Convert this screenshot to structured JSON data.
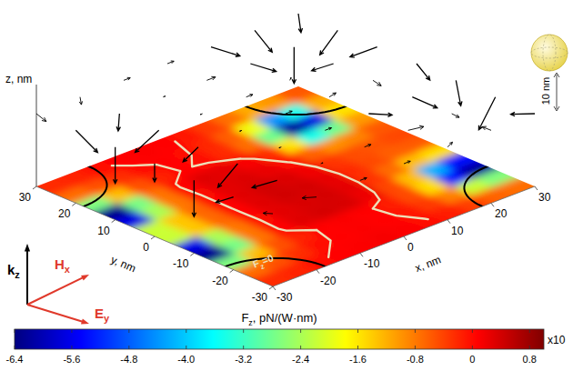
{
  "chart_data": {
    "type": "heatmap",
    "xlabel": "x, nm",
    "ylabel": "y, nm",
    "zlabel": "z, nm",
    "xlim": [
      -30,
      30
    ],
    "ylim": [
      -30,
      30
    ],
    "zlim": [
      0,
      28
    ],
    "xticks": [
      -30,
      -20,
      -10,
      0,
      10,
      20,
      30
    ],
    "yticks": [
      -30,
      -20,
      -10,
      0,
      10,
      20,
      30
    ],
    "cells": [
      [
        -0.23,
        -0.16,
        -0.05,
        0.05,
        0.1,
        0.13,
        0.1,
        0.01,
        -0.15,
        -0.38,
        -0.65,
        -0.72
      ],
      [
        -0.72,
        -0.51,
        -0.25,
        -0.05,
        0.05,
        0.1,
        0.07,
        -0.07,
        -0.35,
        -0.87,
        -2.17,
        -2.67
      ],
      [
        -2.7,
        -1.31,
        -0.51,
        -0.16,
        0.05,
        0.1,
        0.06,
        -0.12,
        -0.47,
        -1.54,
        -5.39,
        -6.2
      ],
      [
        -6.3,
        -2.75,
        -0.77,
        0.07,
        0.3,
        0.37,
        0.36,
        0.19,
        -0.44,
        -1.31,
        -4.18,
        -5.39
      ],
      [
        -5.66,
        -2.39,
        -0.79,
        0.02,
        0.28,
        0.35,
        0.38,
        0.26,
        -0.27,
        -0.71,
        -1.31,
        -1.54
      ],
      [
        -2.16,
        -1.36,
        -0.68,
        0.03,
        0.29,
        0.4,
        0.38,
        0.25,
        -0.24,
        -0.45,
        -0.61,
        -0.59
      ],
      [
        -2.16,
        -1.36,
        -0.68,
        0.03,
        0.29,
        0.4,
        0.33,
        0.17,
        -0.32,
        -0.49,
        -0.53,
        -0.44
      ],
      [
        -5.66,
        -2.39,
        -0.79,
        0.02,
        0.28,
        0.32,
        0.23,
        -0.02,
        -0.65,
        -0.97,
        -0.89,
        -0.56
      ],
      [
        -6.3,
        -2.75,
        -0.77,
        0.07,
        0.3,
        0.27,
        0.12,
        -0.26,
        -1.58,
        -3.48,
        -2.82,
        -1.05
      ],
      [
        -2.7,
        -1.31,
        -0.51,
        -0.16,
        0.03,
        -0.05,
        -0.24,
        -0.73,
        -2.82,
        -6.2,
        -5.69,
        -1.58
      ],
      [
        -0.72,
        -0.51,
        -0.25,
        -0.05,
        0.03,
        0.02,
        -0.2,
        -0.61,
        -1.87,
        -4.39,
        -3.48,
        -1.17
      ],
      [
        -0.23,
        -0.16,
        -0.05,
        0.05,
        0.1,
        0.06,
        -0.09,
        -0.35,
        -0.73,
        -1.17,
        -1.02,
        -0.56
      ]
    ],
    "colorbar": {
      "title": {
        "text": "F",
        "sub": "z",
        "rest": ", pN/(W·nm)"
      },
      "range": [
        -6.4,
        1.0
      ],
      "ticks": [
        -6.4,
        -5.6,
        -4.8,
        {
          "value": -4,
          "label": "-4.0"
        },
        -3.2,
        -2.4,
        -1.6,
        -0.8,
        0,
        0.8
      ],
      "multiplier": "x10"
    },
    "contour": {
      "level": 0,
      "color": "#eedfb8",
      "label": {
        "text": "F",
        "sub": "z",
        "rest": "=0"
      }
    },
    "particles": {
      "centers": [
        [
          -30,
          -30
        ],
        [
          30,
          -30
        ],
        [
          -30,
          30
        ],
        [
          30,
          30
        ]
      ],
      "radius": 12
    },
    "arrows": {
      "z": 20,
      "x": [
        -30,
        -20,
        -10,
        0,
        10,
        20,
        30
      ],
      "y": [
        -30,
        -20,
        -10,
        0,
        10,
        20,
        30
      ],
      "uvw": [
        [
          [
            0,
            0.5,
            -0.2
          ],
          [
            -0.3,
            0.4,
            -0.1
          ],
          [
            0.3,
            0,
            0
          ],
          [
            0.3,
            0,
            0
          ],
          [
            0.5,
            0.3,
            -0.1
          ],
          [
            0.4,
            0.9,
            -0.4
          ],
          [
            -0.2,
            1.0,
            -0.4
          ]
        ],
        [
          [
            0.1,
            1.0,
            -0.8
          ],
          [
            -0.6,
            0.6,
            -0.4
          ],
          [
            0.1,
            0,
            0
          ],
          [
            0.3,
            0,
            0
          ],
          [
            0.9,
            0.2,
            -0.3
          ],
          [
            0.8,
            0.5,
            -0.8
          ],
          [
            -0.4,
            0.4,
            -1.8
          ]
        ],
        [
          [
            0,
            0,
            -2
          ],
          [
            -1.0,
            -0.1,
            -0.8
          ],
          [
            -0.1,
            0,
            0
          ],
          [
            0.3,
            0,
            0
          ],
          [
            0.8,
            -0.3,
            -0.3
          ],
          [
            0.6,
            -0.6,
            -0.6
          ],
          [
            -0.5,
            -0.8,
            -0.8
          ]
        ],
        [
          [
            0,
            0,
            -1.0
          ],
          [
            -0.7,
            0,
            -0.5
          ],
          [
            -0.1,
            0,
            0
          ],
          [
            0.3,
            0,
            0
          ],
          [
            0.4,
            0.1,
            0
          ],
          [
            0.2,
            -0.2,
            -0.3
          ],
          [
            -0.2,
            -0.9,
            -0.4
          ]
        ],
        [
          [
            0,
            0,
            -2
          ],
          [
            -1.0,
            0.1,
            -0.8
          ],
          [
            -0.1,
            0,
            0
          ],
          [
            0.3,
            0,
            0
          ],
          [
            0.6,
            0.6,
            -0.4
          ],
          [
            -0.1,
            1.0,
            -0.8
          ],
          [
            -0.7,
            0.6,
            -0.5
          ]
        ],
        [
          [
            0.1,
            -1.0,
            -0.8
          ],
          [
            -0.6,
            -0.6,
            -0.4
          ],
          [
            0.1,
            0,
            0
          ],
          [
            0.4,
            0,
            0
          ],
          [
            1.0,
            -0.2,
            -0.8
          ],
          [
            0,
            0,
            -2
          ],
          [
            -1.0,
            -0.2,
            -0.8
          ]
        ],
        [
          [
            0,
            -0.5,
            -0.2
          ],
          [
            -0.3,
            -0.4,
            -0.1
          ],
          [
            0.3,
            0,
            0
          ],
          [
            0.3,
            0,
            0
          ],
          [
            0.6,
            -0.8,
            -0.4
          ],
          [
            -0.1,
            -1.0,
            -0.7
          ],
          [
            -0.6,
            -0.8,
            -0.4
          ]
        ]
      ]
    },
    "field_labels": [
      {
        "text": "k",
        "sub": "z",
        "color": "#000000"
      },
      {
        "text": "H",
        "sub": "x",
        "color": "#e0392b"
      },
      {
        "text": "E",
        "sub": "y",
        "color": "#e0392b"
      }
    ],
    "scale_label": "10 nm"
  }
}
